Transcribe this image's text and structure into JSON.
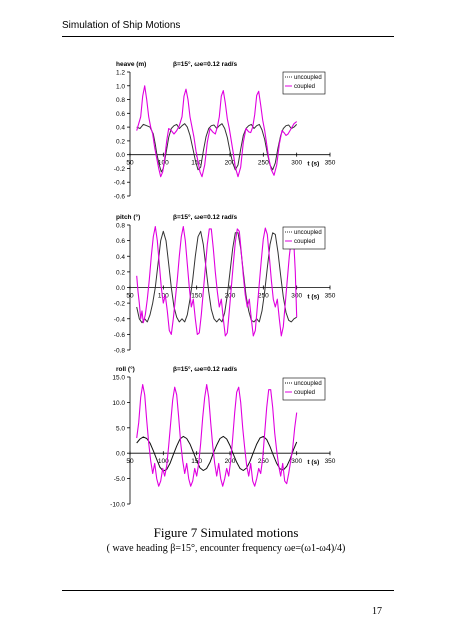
{
  "page": {
    "header": "Simulation of Ship Motions",
    "caption_title": "Figure 7  Simulated motions",
    "caption_sub": "( wave heading β=15°, encounter frequency ωe=(ω1-ω4)/4)",
    "page_number": "17"
  },
  "chart_data": [
    {
      "type": "line",
      "ylabel": "heave (m)",
      "annotation": "β=15°, ωe=0.12 rad/s",
      "xlabel": "t (s)",
      "xlim": [
        50,
        350
      ],
      "ylim": [
        -0.6,
        1.2
      ],
      "xticks": [
        "50",
        "100",
        "150",
        "200",
        "250",
        "300",
        "350"
      ],
      "yticks": [
        "1.2",
        "1.0",
        "0.8",
        "0.6",
        "0.4",
        "0.2",
        "0.0",
        "-0.2",
        "-0.4",
        "-0.6"
      ],
      "legend_position": "top-right",
      "colors": {
        "uncoupled": "#333333",
        "coupled": "#e000e0"
      },
      "series": [
        {
          "name": "uncoupled",
          "x": [
            60,
            65,
            70,
            75,
            80,
            85,
            88,
            90,
            94,
            97,
            100,
            104,
            108,
            112,
            116,
            120,
            124,
            128,
            132,
            136,
            140,
            144,
            148,
            152,
            156,
            160,
            164,
            168,
            172,
            176,
            180,
            184,
            188,
            192,
            196,
            200,
            204,
            208,
            212,
            216,
            220,
            224,
            228,
            232,
            236,
            240,
            244,
            248,
            252,
            256,
            260,
            264,
            268,
            272,
            276,
            280,
            284,
            288,
            292,
            296,
            300
          ],
          "y": [
            0.4,
            0.38,
            0.44,
            0.42,
            0.4,
            0.3,
            0.15,
            0.02,
            -0.15,
            -0.25,
            -0.2,
            0.02,
            0.25,
            0.38,
            0.42,
            0.44,
            0.38,
            0.42,
            0.45,
            0.4,
            0.28,
            0.1,
            -0.08,
            -0.22,
            -0.18,
            0.05,
            0.26,
            0.38,
            0.42,
            0.43,
            0.38,
            0.42,
            0.45,
            0.38,
            0.25,
            0.05,
            -0.12,
            -0.22,
            -0.15,
            0.08,
            0.28,
            0.38,
            0.42,
            0.44,
            0.38,
            0.42,
            0.44,
            0.36,
            0.22,
            0.02,
            -0.15,
            -0.22,
            -0.12,
            0.1,
            0.28,
            0.38,
            0.42,
            0.43,
            0.38,
            0.4,
            0.44
          ]
        },
        {
          "name": "coupled",
          "x": [
            60,
            63,
            66,
            69,
            72,
            75,
            78,
            81,
            84,
            87,
            90,
            93,
            96,
            99,
            102,
            105,
            108,
            112,
            116,
            120,
            124,
            128,
            131,
            134,
            137,
            140,
            143,
            146,
            149,
            152,
            155,
            158,
            162,
            166,
            170,
            174,
            178,
            181,
            184,
            187,
            190,
            193,
            196,
            199,
            202,
            205,
            208,
            212,
            216,
            220,
            224,
            228,
            231,
            234,
            237,
            240,
            243,
            246,
            249,
            252,
            255,
            258,
            262,
            266,
            270,
            274,
            278,
            281,
            284,
            287,
            290,
            293,
            296,
            300
          ],
          "y": [
            0.35,
            0.45,
            0.55,
            0.85,
            1.0,
            0.8,
            0.55,
            0.4,
            0.3,
            0.1,
            -0.05,
            -0.2,
            -0.32,
            -0.25,
            -0.05,
            0.2,
            0.38,
            0.35,
            0.3,
            0.35,
            0.42,
            0.55,
            0.85,
            0.95,
            0.8,
            0.55,
            0.4,
            0.25,
            0.05,
            -0.1,
            -0.25,
            -0.32,
            -0.15,
            0.18,
            0.38,
            0.33,
            0.3,
            0.4,
            0.55,
            0.85,
            0.93,
            0.75,
            0.52,
            0.38,
            0.2,
            0.02,
            -0.18,
            -0.32,
            -0.18,
            0.18,
            0.38,
            0.33,
            0.32,
            0.4,
            0.58,
            0.86,
            0.92,
            0.72,
            0.5,
            0.35,
            0.15,
            -0.05,
            -0.22,
            -0.3,
            -0.15,
            0.15,
            0.35,
            0.32,
            0.28,
            0.3,
            0.35,
            0.4,
            0.45,
            0.48
          ]
        }
      ]
    },
    {
      "type": "line",
      "ylabel": "pitch (°)",
      "annotation": "β=15°, ωe=0.12 rad/s",
      "xlabel": "t (s)",
      "xlim": [
        50,
        350
      ],
      "ylim": [
        -0.8,
        0.8
      ],
      "xticks": [
        "50",
        "100",
        "150",
        "200",
        "250",
        "300",
        "350"
      ],
      "yticks": [
        "0.8",
        "0.6",
        "0.4",
        "0.2",
        "0.0",
        "-0.2",
        "-0.4",
        "-0.6",
        "-0.8"
      ],
      "legend_position": "top-right",
      "colors": {
        "uncoupled": "#333333",
        "coupled": "#e000e0"
      },
      "series": [
        {
          "name": "uncoupled",
          "x": [
            60,
            64,
            68,
            72,
            76,
            80,
            84,
            88,
            92,
            96,
            100,
            104,
            108,
            112,
            116,
            120,
            124,
            128,
            132,
            136,
            140,
            144,
            148,
            152,
            156,
            160,
            164,
            168,
            172,
            176,
            180,
            184,
            188,
            192,
            196,
            200,
            204,
            208,
            212,
            216,
            220,
            224,
            228,
            232,
            236,
            240,
            244,
            248,
            252,
            256,
            260,
            264,
            268,
            272,
            276,
            280,
            284,
            288,
            292,
            296,
            300
          ],
          "y": [
            -0.25,
            -0.4,
            -0.45,
            -0.4,
            -0.44,
            -0.35,
            -0.2,
            0.0,
            0.3,
            0.6,
            0.72,
            0.6,
            0.3,
            0.0,
            -0.25,
            -0.38,
            -0.44,
            -0.4,
            -0.44,
            -0.35,
            -0.15,
            0.1,
            0.4,
            0.65,
            0.72,
            0.55,
            0.25,
            -0.05,
            -0.28,
            -0.4,
            -0.44,
            -0.4,
            -0.44,
            -0.32,
            -0.1,
            0.2,
            0.5,
            0.7,
            0.7,
            0.5,
            0.2,
            -0.1,
            -0.3,
            -0.42,
            -0.44,
            -0.4,
            -0.44,
            -0.3,
            -0.05,
            0.25,
            0.55,
            0.7,
            0.68,
            0.45,
            0.15,
            -0.12,
            -0.32,
            -0.42,
            -0.44,
            -0.4,
            -0.38
          ]
        },
        {
          "name": "coupled",
          "x": [
            60,
            62,
            64,
            66,
            68,
            70,
            73,
            76,
            79,
            82,
            85,
            88,
            91,
            94,
            97,
            100,
            103,
            106,
            109,
            112,
            115,
            118,
            121,
            124,
            127,
            130,
            133,
            136,
            139,
            142,
            145,
            148,
            151,
            154,
            157,
            160,
            163,
            166,
            169,
            172,
            175,
            178,
            181,
            184,
            187,
            190,
            193,
            196,
            199,
            202,
            205,
            208,
            211,
            214,
            217,
            220,
            223,
            226,
            229,
            232,
            235,
            238,
            241,
            244,
            247,
            250,
            253,
            256,
            259,
            262,
            265,
            268,
            271,
            274,
            277,
            280,
            283,
            286,
            289,
            292,
            295,
            298,
            300
          ],
          "y": [
            0.15,
            -0.05,
            -0.2,
            -0.4,
            -0.3,
            -0.45,
            -0.35,
            -0.15,
            0.1,
            0.4,
            0.65,
            0.78,
            0.6,
            0.3,
            0.0,
            -0.2,
            -0.1,
            -0.3,
            -0.55,
            -0.6,
            -0.4,
            -0.15,
            0.1,
            0.4,
            0.65,
            0.78,
            0.6,
            0.3,
            0.0,
            -0.25,
            -0.15,
            -0.4,
            -0.6,
            -0.58,
            -0.35,
            -0.05,
            0.25,
            0.55,
            0.75,
            0.75,
            0.5,
            0.2,
            -0.05,
            -0.25,
            -0.15,
            -0.4,
            -0.62,
            -0.58,
            -0.3,
            0.0,
            0.3,
            0.58,
            0.75,
            0.72,
            0.45,
            0.15,
            -0.1,
            -0.25,
            -0.15,
            -0.4,
            -0.62,
            -0.55,
            -0.25,
            0.05,
            0.35,
            0.62,
            0.76,
            0.68,
            0.4,
            0.1,
            -0.15,
            -0.25,
            -0.15,
            -0.4,
            -0.62,
            -0.5,
            -0.2,
            0.1,
            0.4,
            0.62,
            0.7,
            0.2,
            -0.38
          ]
        }
      ]
    },
    {
      "type": "line",
      "ylabel": "roll (°)",
      "annotation": "β=15°, ωe=0.12 rad/s",
      "xlabel": "t (s)",
      "xlim": [
        50,
        350
      ],
      "ylim": [
        -10,
        15
      ],
      "xticks": [
        "50",
        "100",
        "150",
        "200",
        "250",
        "300",
        "350"
      ],
      "yticks": [
        "15.0",
        "10.0",
        "5.0",
        "0.0",
        "-5.0",
        "-10.0"
      ],
      "legend_position": "top-right",
      "colors": {
        "uncoupled": "#111111",
        "coupled": "#e000e0"
      },
      "series": [
        {
          "name": "uncoupled",
          "x": [
            60,
            65,
            70,
            75,
            80,
            85,
            90,
            95,
            100,
            105,
            110,
            115,
            120,
            125,
            130,
            135,
            140,
            145,
            150,
            155,
            160,
            165,
            170,
            175,
            180,
            185,
            190,
            195,
            200,
            205,
            210,
            215,
            220,
            225,
            230,
            235,
            240,
            245,
            250,
            255,
            260,
            265,
            270,
            275,
            280,
            285,
            290,
            295,
            300
          ],
          "y": [
            2.0,
            2.8,
            3.2,
            2.9,
            2.0,
            0.5,
            -1.2,
            -2.8,
            -3.5,
            -3.2,
            -2.0,
            -0.3,
            1.4,
            2.8,
            3.3,
            2.9,
            1.8,
            0.2,
            -1.5,
            -2.9,
            -3.4,
            -3.0,
            -1.8,
            0.0,
            1.6,
            2.9,
            3.3,
            2.8,
            1.5,
            -0.2,
            -1.8,
            -3.0,
            -3.4,
            -2.9,
            -1.6,
            0.1,
            1.8,
            3.0,
            3.3,
            2.7,
            1.3,
            -0.4,
            -2.0,
            -3.1,
            -3.3,
            -2.6,
            -1.2,
            0.6,
            2.2
          ]
        },
        {
          "name": "coupled",
          "x": [
            60,
            63,
            66,
            69,
            72,
            75,
            78,
            81,
            84,
            87,
            90,
            93,
            96,
            99,
            102,
            105,
            108,
            111,
            114,
            117,
            120,
            123,
            126,
            129,
            132,
            135,
            138,
            141,
            144,
            147,
            150,
            153,
            156,
            159,
            162,
            165,
            168,
            171,
            174,
            177,
            180,
            183,
            186,
            189,
            192,
            195,
            198,
            201,
            204,
            207,
            210,
            213,
            216,
            219,
            222,
            225,
            228,
            231,
            234,
            237,
            240,
            243,
            246,
            249,
            252,
            255,
            258,
            261,
            264,
            267,
            270,
            273,
            276,
            279,
            282,
            285,
            288,
            291,
            294,
            297,
            300
          ],
          "y": [
            3.0,
            6.0,
            11.0,
            13.5,
            11.5,
            6.5,
            2.0,
            -1.5,
            -4.0,
            -2.0,
            -5.0,
            -6.5,
            -5.5,
            -3.0,
            -4.5,
            -2.5,
            1.5,
            6.0,
            10.5,
            13.0,
            11.5,
            7.0,
            2.0,
            -1.5,
            -4.0,
            -2.0,
            -5.0,
            -6.5,
            -5.5,
            -3.0,
            -4.5,
            -2.0,
            2.0,
            7.0,
            11.0,
            13.5,
            11.0,
            6.0,
            1.5,
            -2.0,
            -4.5,
            -2.0,
            -5.0,
            -6.5,
            -5.0,
            -3.0,
            -4.5,
            -1.5,
            3.0,
            8.0,
            12.0,
            13.0,
            10.0,
            5.0,
            1.0,
            -2.5,
            -4.5,
            -2.0,
            -5.5,
            -6.5,
            -5.0,
            -3.0,
            -4.0,
            -1.0,
            4.0,
            9.0,
            12.5,
            12.5,
            9.0,
            4.0,
            0.5,
            -2.5,
            -4.5,
            -2.0,
            -5.5,
            -6.0,
            -4.0,
            -1.5,
            1.0,
            5.0,
            8.0
          ]
        }
      ]
    }
  ]
}
